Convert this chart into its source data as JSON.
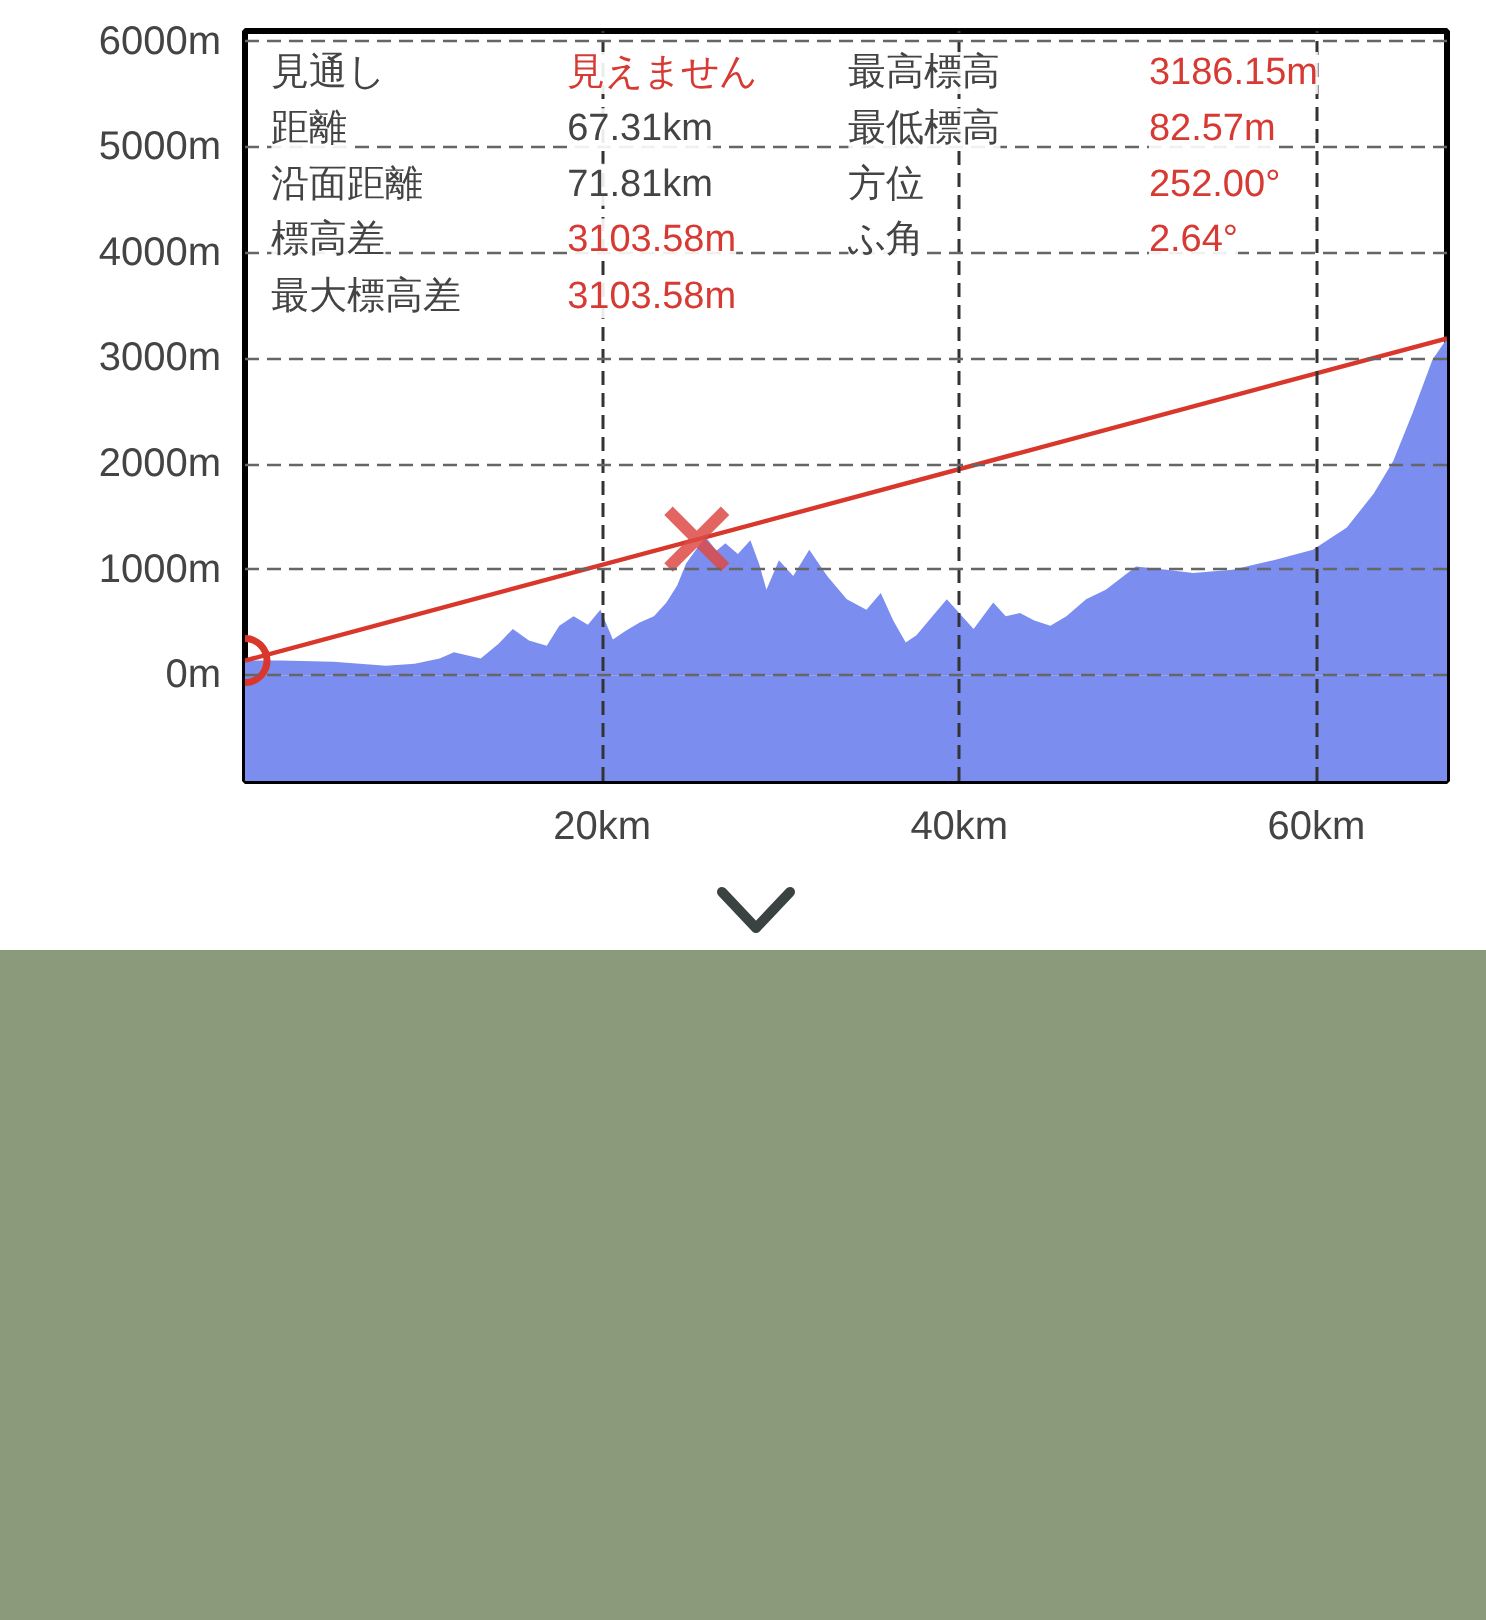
{
  "chart_data": {
    "type": "area",
    "xlim": [
      0,
      67.31
    ],
    "ylim": [
      -1000,
      6100
    ],
    "xticks": [
      {
        "value": 20,
        "label": "20km"
      },
      {
        "value": 40,
        "label": "40km"
      },
      {
        "value": 60,
        "label": "60km"
      }
    ],
    "yticks": [
      {
        "value": 0,
        "label": "0m"
      },
      {
        "value": 1000,
        "label": "1000m"
      },
      {
        "value": 2000,
        "label": "2000m"
      },
      {
        "value": 3000,
        "label": "3000m"
      },
      {
        "value": 4000,
        "label": "4000m"
      },
      {
        "value": 5000,
        "label": "5000m"
      },
      {
        "value": 6000,
        "label": "6000m"
      }
    ],
    "grid": true,
    "x": [
      0,
      2.0,
      4.95,
      7.9,
      9.5,
      10.9,
      11.7,
      13.2,
      14.2,
      15.0,
      15.9,
      16.9,
      17.6,
      18.4,
      19.2,
      19.9,
      20.6,
      21.3,
      22.1,
      22.9,
      23.6,
      24.2,
      24.7,
      25.3,
      25.8,
      26.4,
      26.9,
      27.6,
      28.3,
      28.8,
      29.2,
      29.9,
      30.7,
      31.6,
      32.6,
      33.7,
      34.8,
      35.6,
      36.3,
      37.0,
      37.6,
      38.2,
      39.3,
      40.8,
      41.9,
      42.6,
      43.4,
      44.2,
      45.1,
      46.0,
      47.1,
      48.2,
      49.9,
      51.6,
      53.1,
      55.3,
      57.6,
      59.8,
      61.7,
      63.2,
      64.3,
      65.4,
      66.5,
      67.31
    ],
    "series": [
      {
        "color": "#7b8ef0",
        "values": [
          140,
          140,
          130,
          90,
          110,
          160,
          220,
          160,
          300,
          440,
          330,
          280,
          470,
          560,
          480,
          620,
          340,
          420,
          500,
          560,
          690,
          850,
          1060,
          1200,
          1310,
          1180,
          1250,
          1150,
          1280,
          1050,
          810,
          1090,
          940,
          1190,
          940,
          720,
          620,
          780,
          520,
          310,
          380,
          500,
          720,
          440,
          690,
          560,
          590,
          520,
          470,
          560,
          720,
          810,
          1030,
          1000,
          970,
          1000,
          1090,
          1190,
          1400,
          1720,
          2030,
          2490,
          2990,
          3190
        ]
      },
      {
        "type": "line",
        "color": "#d9372c",
        "line_style": "solid",
        "x": [
          0,
          67.31
        ],
        "values": [
          140,
          3190
        ]
      },
      {
        "type": "scatter",
        "color": "#dd4a45",
        "marker": "cross",
        "x": [
          25.3
        ],
        "values": [
          1290
        ]
      },
      {
        "type": "scatter",
        "color": "#d9372c",
        "marker": "circle",
        "x": [
          0
        ],
        "values": [
          140
        ]
      }
    ],
    "bands": [
      {
        "axis": "y",
        "from": -1000,
        "to": 0,
        "color": "#7b8ef0"
      }
    ],
    "annotations": [
      "見通し",
      "見えません",
      "最高標高",
      "3186.15m",
      "距離",
      "67.31km",
      "最低標高",
      "82.57m",
      "沿面距離",
      "71.81km",
      "方位",
      "252.00°",
      "標高差",
      "3103.58m",
      "ふ角",
      "2.64°",
      "最大標高差",
      "3103.58m"
    ]
  }
}
